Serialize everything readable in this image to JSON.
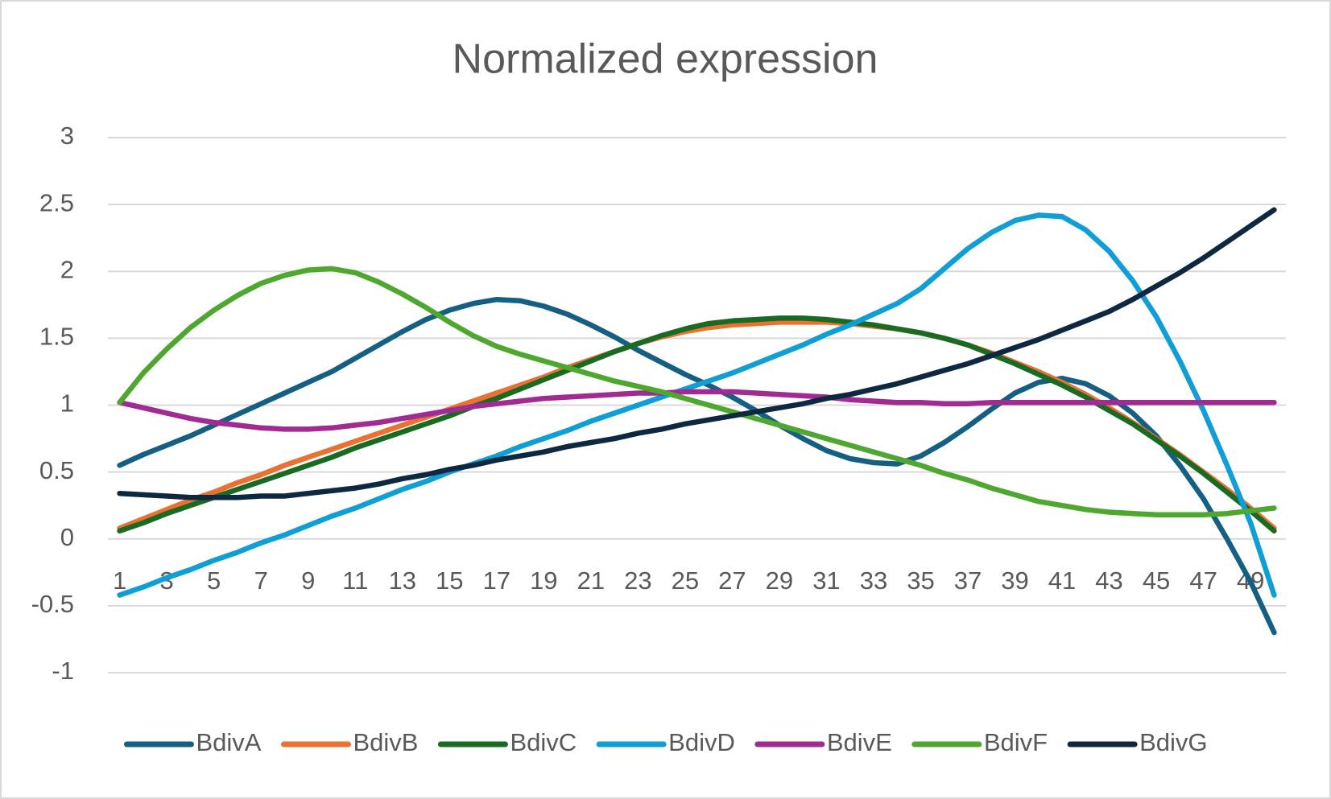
{
  "chart_data": {
    "type": "line",
    "title": "Normalized expression",
    "categories": [
      1,
      null,
      3,
      null,
      5,
      null,
      7,
      null,
      9,
      null,
      11,
      null,
      13,
      null,
      15,
      null,
      17,
      null,
      19,
      null,
      21,
      null,
      23,
      null,
      25,
      null,
      27,
      null,
      29,
      null,
      31,
      null,
      33,
      null,
      35,
      null,
      37,
      null,
      39,
      null,
      41,
      null,
      43,
      null,
      45,
      null,
      47,
      null,
      49,
      null
    ],
    "ylim": [
      -1,
      3
    ],
    "yticks": [
      -1,
      -0.5,
      0,
      0.5,
      1,
      1.5,
      2,
      2.5,
      3
    ],
    "grid": true,
    "legend": "bottom",
    "series": [
      {
        "name": "BdivA",
        "color": "#156082",
        "values": [
          0.55,
          0.63,
          0.7,
          0.77,
          0.85,
          0.93,
          1.01,
          1.09,
          1.17,
          1.25,
          1.35,
          1.45,
          1.55,
          1.64,
          1.71,
          1.76,
          1.79,
          1.78,
          1.74,
          1.68,
          1.6,
          1.51,
          1.41,
          1.32,
          1.23,
          1.15,
          1.06,
          0.96,
          0.85,
          0.75,
          0.66,
          0.6,
          0.57,
          0.56,
          0.62,
          0.72,
          0.84,
          0.97,
          1.09,
          1.17,
          1.2,
          1.16,
          1.07,
          0.94,
          0.77,
          0.55,
          0.3,
          0.0,
          -0.32,
          -0.7
        ]
      },
      {
        "name": "BdivB",
        "color": "#e97132",
        "values": [
          0.08,
          0.15,
          0.22,
          0.29,
          0.35,
          0.42,
          0.48,
          0.55,
          0.61,
          0.67,
          0.73,
          0.79,
          0.85,
          0.91,
          0.97,
          1.03,
          1.09,
          1.15,
          1.21,
          1.28,
          1.34,
          1.4,
          1.46,
          1.51,
          1.55,
          1.58,
          1.6,
          1.61,
          1.62,
          1.62,
          1.62,
          1.61,
          1.59,
          1.57,
          1.54,
          1.5,
          1.45,
          1.39,
          1.32,
          1.25,
          1.17,
          1.08,
          0.98,
          0.87,
          0.75,
          0.63,
          0.5,
          0.37,
          0.23,
          0.08
        ]
      },
      {
        "name": "BdivC",
        "color": "#196b24",
        "values": [
          0.06,
          0.12,
          0.19,
          0.25,
          0.31,
          0.37,
          0.43,
          0.49,
          0.55,
          0.61,
          0.68,
          0.74,
          0.8,
          0.86,
          0.92,
          0.99,
          1.05,
          1.12,
          1.19,
          1.26,
          1.33,
          1.4,
          1.46,
          1.52,
          1.57,
          1.61,
          1.63,
          1.64,
          1.65,
          1.65,
          1.64,
          1.62,
          1.6,
          1.57,
          1.54,
          1.5,
          1.45,
          1.38,
          1.31,
          1.23,
          1.15,
          1.06,
          0.96,
          0.86,
          0.74,
          0.62,
          0.49,
          0.35,
          0.21,
          0.06
        ]
      },
      {
        "name": "BdivD",
        "color": "#0f9ed5",
        "values": [
          -0.42,
          -0.36,
          -0.29,
          -0.23,
          -0.16,
          -0.1,
          -0.03,
          0.03,
          0.1,
          0.17,
          0.23,
          0.3,
          0.37,
          0.43,
          0.5,
          0.56,
          0.62,
          0.69,
          0.75,
          0.81,
          0.88,
          0.94,
          1.0,
          1.06,
          1.12,
          1.18,
          1.24,
          1.31,
          1.38,
          1.45,
          1.53,
          1.6,
          1.68,
          1.76,
          1.87,
          2.02,
          2.17,
          2.29,
          2.38,
          2.42,
          2.41,
          2.31,
          2.15,
          1.93,
          1.66,
          1.33,
          0.96,
          0.55,
          0.12,
          -0.42
        ]
      },
      {
        "name": "BdivE",
        "color": "#a02b93",
        "values": [
          1.02,
          0.98,
          0.94,
          0.9,
          0.87,
          0.85,
          0.83,
          0.82,
          0.82,
          0.83,
          0.85,
          0.87,
          0.9,
          0.93,
          0.96,
          0.99,
          1.01,
          1.03,
          1.05,
          1.06,
          1.07,
          1.08,
          1.09,
          1.09,
          1.1,
          1.1,
          1.1,
          1.09,
          1.08,
          1.07,
          1.06,
          1.04,
          1.03,
          1.02,
          1.02,
          1.01,
          1.01,
          1.02,
          1.02,
          1.02,
          1.02,
          1.02,
          1.02,
          1.02,
          1.02,
          1.02,
          1.02,
          1.02,
          1.02,
          1.02
        ]
      },
      {
        "name": "BdivF",
        "color": "#4ea72e",
        "values": [
          1.02,
          1.24,
          1.42,
          1.58,
          1.71,
          1.82,
          1.91,
          1.97,
          2.01,
          2.02,
          1.99,
          1.92,
          1.83,
          1.73,
          1.62,
          1.52,
          1.44,
          1.38,
          1.33,
          1.28,
          1.23,
          1.18,
          1.14,
          1.1,
          1.05,
          1.0,
          0.95,
          0.9,
          0.85,
          0.8,
          0.75,
          0.7,
          0.65,
          0.6,
          0.55,
          0.49,
          0.44,
          0.38,
          0.33,
          0.28,
          0.25,
          0.22,
          0.2,
          0.19,
          0.18,
          0.18,
          0.18,
          0.19,
          0.21,
          0.23
        ]
      },
      {
        "name": "BdivG",
        "color": "#0e2841",
        "values": [
          0.34,
          0.33,
          0.32,
          0.31,
          0.31,
          0.31,
          0.32,
          0.32,
          0.34,
          0.36,
          0.38,
          0.41,
          0.45,
          0.48,
          0.52,
          0.55,
          0.59,
          0.62,
          0.65,
          0.69,
          0.72,
          0.75,
          0.79,
          0.82,
          0.86,
          0.89,
          0.92,
          0.95,
          0.98,
          1.01,
          1.05,
          1.08,
          1.12,
          1.16,
          1.21,
          1.26,
          1.31,
          1.37,
          1.43,
          1.49,
          1.56,
          1.63,
          1.7,
          1.79,
          1.89,
          1.99,
          2.1,
          2.22,
          2.34,
          2.46
        ]
      }
    ]
  }
}
